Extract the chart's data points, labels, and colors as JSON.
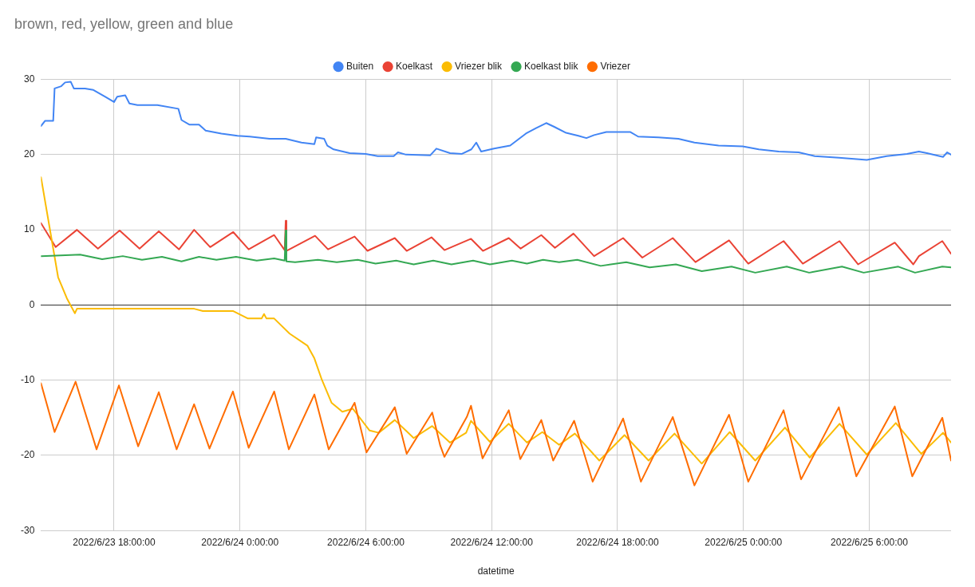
{
  "chart_data": {
    "type": "line",
    "title": "brown, red, yellow, green and blue",
    "xlabel": "datetime",
    "xlim": [
      "2022-06-23T14:31",
      "2022-06-25T09:54"
    ],
    "xticks": [
      {
        "value": "2022-06-23T18:00",
        "label": "2022/6/23 18:00:00"
      },
      {
        "value": "2022-06-24T00:00",
        "label": "2022/6/24 0:00:00"
      },
      {
        "value": "2022-06-24T06:00",
        "label": "2022/6/24 6:00:00"
      },
      {
        "value": "2022-06-24T12:00",
        "label": "2022/6/24 12:00:00"
      },
      {
        "value": "2022-06-24T18:00",
        "label": "2022/6/24 18:00:00"
      },
      {
        "value": "2022-06-25T00:00",
        "label": "2022/6/25 0:00:00"
      },
      {
        "value": "2022-06-25T06:00",
        "label": "2022/6/25 6:00:00"
      }
    ],
    "ylim": [
      -30,
      30
    ],
    "yticks": [
      -30,
      -20,
      -10,
      0,
      10,
      20,
      30
    ],
    "grid": true,
    "legend": "top",
    "marker": "none",
    "line_style": "solid",
    "series": [
      {
        "name": "Buiten",
        "color": "#4285f4",
        "x": [
          "2022-06-23T14:31",
          "2022-06-23T14:43",
          "2022-06-23T15:06",
          "2022-06-23T15:10",
          "2022-06-23T15:29",
          "2022-06-23T15:40",
          "2022-06-23T15:56",
          "2022-06-23T16:05",
          "2022-06-23T16:37",
          "2022-06-23T17:01",
          "2022-06-23T17:35",
          "2022-06-23T18:00",
          "2022-06-23T18:09",
          "2022-06-23T18:32",
          "2022-06-23T18:44",
          "2022-06-23T19:07",
          "2022-06-23T20:04",
          "2022-06-23T21:04",
          "2022-06-23T21:13",
          "2022-06-23T21:35",
          "2022-06-23T22:03",
          "2022-06-23T22:22",
          "2022-06-23T23:07",
          "2022-06-23T23:53",
          "2022-06-24T00:28",
          "2022-06-24T01:25",
          "2022-06-24T02:11",
          "2022-06-24T02:56",
          "2022-06-24T03:33",
          "2022-06-24T03:38",
          "2022-06-24T04:01",
          "2022-06-24T04:10",
          "2022-06-24T04:28",
          "2022-06-24T05:14",
          "2022-06-24T06:00",
          "2022-06-24T06:34",
          "2022-06-24T07:20",
          "2022-06-24T07:32",
          "2022-06-24T07:55",
          "2022-06-24T09:04",
          "2022-06-24T09:22",
          "2022-06-24T10:01",
          "2022-06-24T10:35",
          "2022-06-24T11:02",
          "2022-06-24T11:16",
          "2022-06-24T11:30",
          "2022-06-24T12:07",
          "2022-06-24T12:53",
          "2022-06-24T13:38",
          "2022-06-24T14:06",
          "2022-06-24T14:36",
          "2022-06-24T14:59",
          "2022-06-24T15:33",
          "2022-06-24T16:08",
          "2022-06-24T16:31",
          "2022-06-24T16:53",
          "2022-06-24T17:28",
          "2022-06-24T18:37",
          "2022-06-24T18:59",
          "2022-06-24T19:57",
          "2022-06-24T20:54",
          "2022-06-24T21:40",
          "2022-06-24T22:49",
          "2022-06-24T23:58",
          "2022-06-25T00:44",
          "2022-06-25T01:41",
          "2022-06-25T02:38",
          "2022-06-25T03:24",
          "2022-06-25T04:33",
          "2022-06-25T05:53",
          "2022-06-25T06:50",
          "2022-06-25T07:48",
          "2022-06-25T08:22",
          "2022-06-25T08:45",
          "2022-06-25T09:31",
          "2022-06-25T09:43",
          "2022-06-25T09:54"
        ],
        "values": [
          23.8,
          24.5,
          24.5,
          28.8,
          29.1,
          29.6,
          29.7,
          28.8,
          28.8,
          28.6,
          27.7,
          27.0,
          27.7,
          27.9,
          26.8,
          26.6,
          26.6,
          26.1,
          24.6,
          24.0,
          24.0,
          23.2,
          22.8,
          22.5,
          22.4,
          22.1,
          22.1,
          21.6,
          21.4,
          22.3,
          22.1,
          21.2,
          20.7,
          20.2,
          20.1,
          19.8,
          19.8,
          20.3,
          20.0,
          19.9,
          20.8,
          20.2,
          20.1,
          20.7,
          21.6,
          20.4,
          20.8,
          21.2,
          22.8,
          23.5,
          24.2,
          23.7,
          22.9,
          22.5,
          22.2,
          22.6,
          23.0,
          23.0,
          22.4,
          22.3,
          22.1,
          21.6,
          21.2,
          21.1,
          20.7,
          20.4,
          20.3,
          19.8,
          19.6,
          19.3,
          19.8,
          20.1,
          20.4,
          20.2,
          19.7,
          20.3,
          20.0
        ]
      },
      {
        "name": "Koelkast",
        "color": "#ea4335",
        "x": [
          "2022-06-23T14:31",
          "2022-06-23T15:13",
          "2022-06-23T16:14",
          "2022-06-23T17:14",
          "2022-06-23T18:16",
          "2022-06-23T19:13",
          "2022-06-23T20:08",
          "2022-06-23T21:06",
          "2022-06-23T21:49",
          "2022-06-23T22:35",
          "2022-06-23T23:41",
          "2022-06-24T00:25",
          "2022-06-24T01:38",
          "2022-06-24T02:08",
          "2022-06-24T02:11",
          "2022-06-24T02:13",
          "2022-06-24T03:35",
          "2022-06-24T04:12",
          "2022-06-24T05:28",
          "2022-06-24T06:05",
          "2022-06-24T07:23",
          "2022-06-24T07:57",
          "2022-06-24T09:08",
          "2022-06-24T09:45",
          "2022-06-24T11:01",
          "2022-06-24T11:35",
          "2022-06-24T12:49",
          "2022-06-24T13:23",
          "2022-06-24T14:22",
          "2022-06-24T15:01",
          "2022-06-24T15:54",
          "2022-06-24T16:53",
          "2022-06-24T18:16",
          "2022-06-24T19:11",
          "2022-06-24T20:38",
          "2022-06-24T21:43",
          "2022-06-24T23:19",
          "2022-06-25T00:14",
          "2022-06-25T01:55",
          "2022-06-25T02:50",
          "2022-06-25T04:35",
          "2022-06-25T05:28",
          "2022-06-25T07:13",
          "2022-06-25T08:06",
          "2022-06-25T08:22",
          "2022-06-25T09:29",
          "2022-06-25T09:54"
        ],
        "values": [
          10.9,
          7.7,
          10.0,
          7.5,
          9.9,
          7.5,
          9.8,
          7.4,
          10.0,
          7.7,
          9.7,
          7.4,
          9.3,
          7.3,
          11.2,
          7.2,
          9.2,
          7.4,
          9.1,
          7.2,
          8.9,
          7.2,
          9.0,
          7.3,
          8.8,
          7.2,
          8.9,
          7.5,
          9.3,
          7.6,
          9.5,
          6.5,
          8.9,
          6.3,
          8.9,
          5.7,
          8.6,
          5.5,
          8.5,
          5.5,
          8.5,
          5.4,
          8.3,
          5.4,
          6.5,
          8.5,
          6.8
        ]
      },
      {
        "name": "Vriezer blik",
        "color": "#fbbc04",
        "x": [
          "2022-06-23T14:31",
          "2022-06-23T15:20",
          "2022-06-23T15:45",
          "2022-06-23T16:08",
          "2022-06-23T16:14",
          "2022-06-23T21:49",
          "2022-06-23T22:14",
          "2022-06-23T23:40",
          "2022-06-24T00:23",
          "2022-06-24T01:02",
          "2022-06-24T01:09",
          "2022-06-24T01:16",
          "2022-06-24T01:38",
          "2022-06-24T02:22",
          "2022-06-24T03:13",
          "2022-06-24T03:33",
          "2022-06-24T03:54",
          "2022-06-24T04:22",
          "2022-06-24T04:53",
          "2022-06-24T05:23",
          "2022-06-24T06:11",
          "2022-06-24T06:37",
          "2022-06-24T07:23",
          "2022-06-24T08:17",
          "2022-06-24T09:10",
          "2022-06-24T10:01",
          "2022-06-24T10:47",
          "2022-06-24T11:01",
          "2022-06-24T11:55",
          "2022-06-24T12:49",
          "2022-06-24T13:41",
          "2022-06-24T14:25",
          "2022-06-24T15:13",
          "2022-06-24T15:58",
          "2022-06-24T17:08",
          "2022-06-24T18:20",
          "2022-06-24T19:29",
          "2022-06-24T20:43",
          "2022-06-24T22:01",
          "2022-06-24T23:21",
          "2022-06-25T00:34",
          "2022-06-25T01:59",
          "2022-06-25T03:10",
          "2022-06-25T04:35",
          "2022-06-25T05:53",
          "2022-06-25T07:16",
          "2022-06-25T08:29",
          "2022-06-25T09:31",
          "2022-06-25T09:54"
        ],
        "values": [
          17.0,
          3.7,
          0.9,
          -1.1,
          -0.5,
          -0.5,
          -0.8,
          -0.8,
          -1.8,
          -1.8,
          -1.2,
          -1.8,
          -1.8,
          -3.8,
          -5.4,
          -7.1,
          -9.9,
          -13.0,
          -14.2,
          -13.8,
          -16.7,
          -17.0,
          -15.3,
          -17.7,
          -16.1,
          -18.3,
          -17.0,
          -15.4,
          -18.2,
          -15.8,
          -18.3,
          -16.9,
          -18.6,
          -17.1,
          -20.7,
          -17.3,
          -20.7,
          -17.1,
          -21.1,
          -16.9,
          -20.7,
          -16.3,
          -20.3,
          -15.8,
          -19.9,
          -15.7,
          -19.8,
          -17.0,
          -18.3
        ]
      },
      {
        "name": "Koelkast blik",
        "color": "#34a853",
        "x": [
          "2022-06-23T14:31",
          "2022-06-23T16:23",
          "2022-06-23T17:26",
          "2022-06-23T18:25",
          "2022-06-23T19:20",
          "2022-06-23T20:17",
          "2022-06-23T21:13",
          "2022-06-23T22:03",
          "2022-06-23T22:53",
          "2022-06-23T23:49",
          "2022-06-24T00:48",
          "2022-06-24T01:38",
          "2022-06-24T02:08",
          "2022-06-24T02:11",
          "2022-06-24T02:13",
          "2022-06-24T02:38",
          "2022-06-24T03:43",
          "2022-06-24T04:37",
          "2022-06-24T05:37",
          "2022-06-24T06:28",
          "2022-06-24T07:27",
          "2022-06-24T08:17",
          "2022-06-24T09:13",
          "2022-06-24T10:05",
          "2022-06-24T11:07",
          "2022-06-24T11:55",
          "2022-06-24T12:58",
          "2022-06-24T13:41",
          "2022-06-24T14:27",
          "2022-06-24T15:13",
          "2022-06-24T16:05",
          "2022-06-24T17:12",
          "2022-06-24T18:25",
          "2022-06-24T19:32",
          "2022-06-24T20:47",
          "2022-06-24T22:01",
          "2022-06-24T23:26",
          "2022-06-25T00:34",
          "2022-06-25T02:04",
          "2022-06-25T03:08",
          "2022-06-25T04:42",
          "2022-06-25T05:44",
          "2022-06-25T07:23",
          "2022-06-25T08:11",
          "2022-06-25T09:29",
          "2022-06-25T09:54"
        ],
        "values": [
          6.5,
          6.7,
          6.1,
          6.5,
          6.0,
          6.4,
          5.8,
          6.4,
          6.0,
          6.4,
          5.9,
          6.2,
          5.9,
          9.9,
          5.8,
          5.7,
          6.0,
          5.7,
          6.0,
          5.5,
          5.9,
          5.4,
          5.9,
          5.4,
          5.9,
          5.4,
          5.9,
          5.5,
          6.0,
          5.7,
          6.0,
          5.2,
          5.7,
          5.0,
          5.4,
          4.5,
          5.1,
          4.3,
          5.1,
          4.3,
          5.1,
          4.3,
          5.1,
          4.3,
          5.1,
          5.0
        ]
      },
      {
        "name": "Vriezer",
        "color": "#ff6d01",
        "x": [
          "2022-06-23T14:31",
          "2022-06-23T15:10",
          "2022-06-23T16:10",
          "2022-06-23T17:10",
          "2022-06-23T18:14",
          "2022-06-23T19:09",
          "2022-06-23T20:08",
          "2022-06-23T20:59",
          "2022-06-23T21:49",
          "2022-06-23T22:33",
          "2022-06-23T23:40",
          "2022-06-24T00:25",
          "2022-06-24T01:38",
          "2022-06-24T02:20",
          "2022-06-24T03:33",
          "2022-06-24T04:14",
          "2022-06-24T05:28",
          "2022-06-24T06:02",
          "2022-06-24T07:23",
          "2022-06-24T07:57",
          "2022-06-24T09:10",
          "2022-06-24T09:33",
          "2022-06-24T09:45",
          "2022-06-24T10:49",
          "2022-06-24T11:01",
          "2022-06-24T11:34",
          "2022-06-24T12:49",
          "2022-06-24T13:22",
          "2022-06-24T14:22",
          "2022-06-24T14:56",
          "2022-06-24T15:56",
          "2022-06-24T16:49",
          "2022-06-24T18:16",
          "2022-06-24T19:07",
          "2022-06-24T20:38",
          "2022-06-24T21:40",
          "2022-06-24T23:19",
          "2022-06-25T00:14",
          "2022-06-25T01:55",
          "2022-06-25T02:45",
          "2022-06-25T04:33",
          "2022-06-25T05:23",
          "2022-06-25T07:13",
          "2022-06-25T08:03",
          "2022-06-25T09:29",
          "2022-06-25T09:54"
        ],
        "values": [
          -10.4,
          -16.9,
          -10.2,
          -19.2,
          -10.7,
          -18.8,
          -11.6,
          -19.2,
          -13.2,
          -19.1,
          -11.5,
          -19.0,
          -11.5,
          -19.2,
          -11.9,
          -19.2,
          -13.0,
          -19.6,
          -13.6,
          -19.8,
          -14.3,
          -18.7,
          -20.2,
          -14.9,
          -13.4,
          -20.4,
          -14.0,
          -20.5,
          -15.3,
          -20.7,
          -15.4,
          -23.5,
          -15.1,
          -23.5,
          -14.9,
          -24.0,
          -14.6,
          -23.5,
          -14.0,
          -23.2,
          -13.6,
          -22.8,
          -13.5,
          -22.8,
          -15.0,
          -20.7
        ]
      }
    ]
  }
}
